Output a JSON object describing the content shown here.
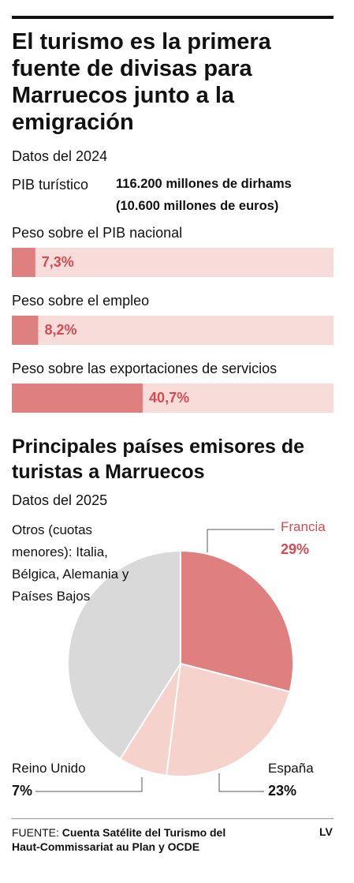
{
  "title": "El turismo es la primera fuente de divisas para Marruecos junto a la emigración",
  "subtitle": "Datos del 2024",
  "pib": {
    "label": "PIB turístico",
    "value_lines": [
      "116.200 millones de dirhams",
      "(10.600 millones de euros)"
    ]
  },
  "chart_data": [
    {
      "type": "bar",
      "orientation": "horizontal",
      "categories": [
        "Peso sobre el PIB nacional",
        "Peso sobre el empleo",
        "Peso sobre las exportaciones de servicios"
      ],
      "values": [
        7.3,
        8.2,
        40.7
      ],
      "value_labels": [
        "7,3%",
        "8,2%",
        "40,7%"
      ],
      "xlim": [
        0,
        100
      ],
      "color": "#e07f7f",
      "track_color": "#f7dcd9",
      "value_label_color": "#d64b50"
    },
    {
      "type": "pie",
      "title": "Principales países emisores de turistas a Marruecos",
      "subtitle": "Datos del 2025",
      "categories": [
        "Francia",
        "España",
        "Reino Unido",
        "Otros (cuotas menores): Italia, Bélgica, Alemania y Países Bajos"
      ],
      "values": [
        29,
        23,
        7,
        41
      ],
      "value_labels": [
        "29%",
        "23%",
        "7%",
        null
      ],
      "colors": [
        "#e07f7f",
        "#f6d2cd",
        "#f6d2cd",
        "#d9d9d9"
      ],
      "label_colors": [
        "#d64b50",
        "#111111",
        "#111111",
        "#111111"
      ]
    }
  ],
  "source": {
    "label": "FUENTE:",
    "text": "Cuenta Satélite del Turismo del Haut-Commissariat au Plan y OCDE"
  },
  "logo": "LV"
}
